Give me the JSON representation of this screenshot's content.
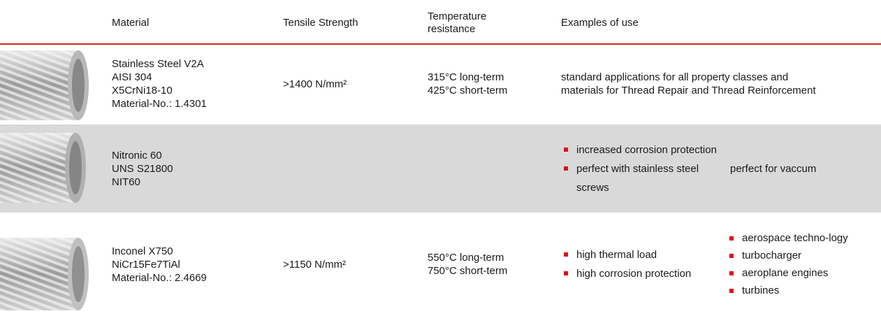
{
  "table": {
    "header": [
      "Material",
      "Tensile Strength",
      "Temperature resistance",
      "Examples of use"
    ],
    "rows": [
      {
        "material": [
          "Stainless Steel V2A",
          "AISI 304",
          "X5CrNi18-10",
          "Material-No.: 1.4301"
        ],
        "tensile": ">1400 N/mm²",
        "temperature": [
          "315°C long-term",
          "425°C short-term"
        ],
        "examples": {
          "lines": [
            "standard applications for all property classes and",
            "materials for Thread Repair and Thread Reinforcement"
          ]
        }
      },
      {
        "material": [
          "Nitronic 60",
          "UNS S21800",
          "NIT60"
        ],
        "examples": {
          "bullets": [
            "increased corrosion protection",
            "perfect with stainless steel screws"
          ],
          "note": "perfect for vaccum"
        }
      },
      {
        "material": [
          "Inconel X750",
          "NiCr15Fe7TiAl",
          "Material-No.: 2.4669"
        ],
        "tensile": ">1150 N/mm²",
        "temperature": [
          "550°C long-term",
          "750°C short-term"
        ],
        "examples": {
          "bullets": [
            "high thermal load",
            "high corrosion protection"
          ],
          "bullets2": [
            "aerospace techno-logy",
            "turbocharger",
            "aeroplane engines",
            "turbines"
          ]
        }
      }
    ]
  }
}
